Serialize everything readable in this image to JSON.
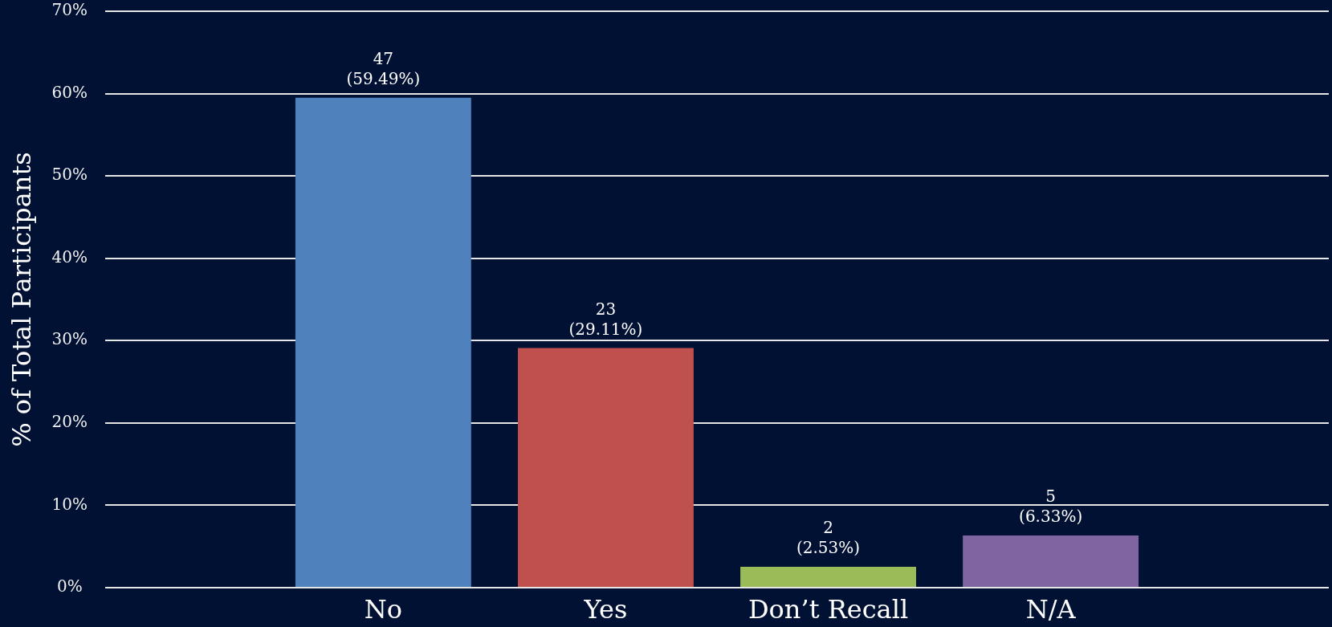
{
  "chart_data": {
    "type": "bar",
    "ylabel": "% of Total Participants",
    "categories": [
      "No",
      "Yes",
      "Don’t Recall",
      "N/A"
    ],
    "values": [
      59.49,
      29.11,
      2.53,
      6.33
    ],
    "colors": [
      "#4f81bd",
      "#c0504d",
      "#9bbb59",
      "#8064a2"
    ],
    "value_labels": [
      "47\n(59.49%)",
      "23\n(29.11%)",
      "2\n(2.53%)",
      "5\n(6.33%)"
    ],
    "ylim": [
      0,
      70
    ],
    "yticks": [
      {
        "value": 0,
        "label": "0%"
      },
      {
        "value": 10,
        "label": "10%"
      },
      {
        "value": 20,
        "label": "20%"
      },
      {
        "value": 30,
        "label": "30%"
      },
      {
        "value": 40,
        "label": "40%"
      },
      {
        "value": 50,
        "label": "50%"
      },
      {
        "value": 60,
        "label": "60%"
      },
      {
        "value": 70,
        "label": "70%"
      }
    ],
    "grid": "y"
  }
}
